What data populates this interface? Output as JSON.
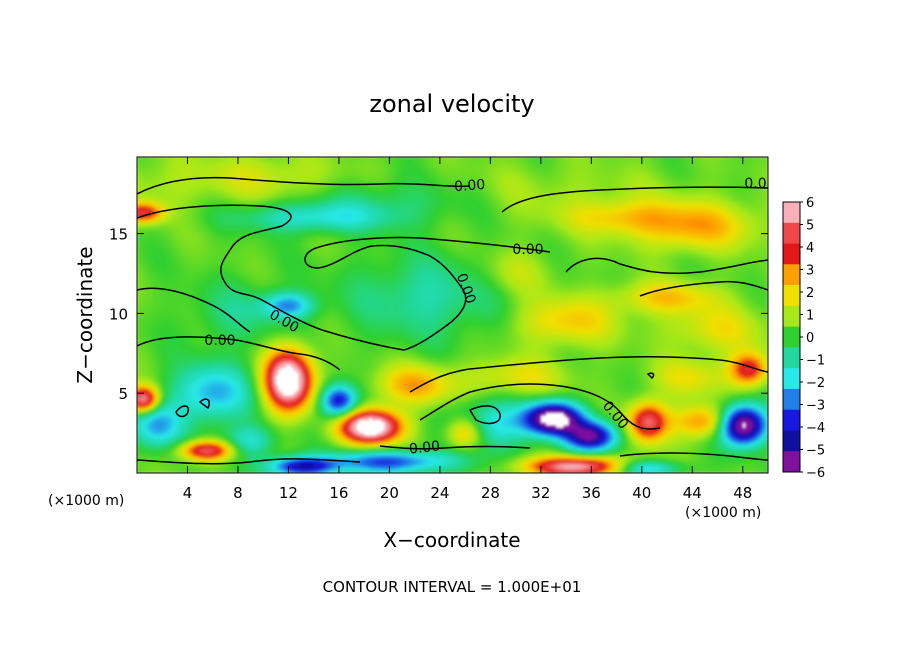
{
  "chart_data": {
    "type": "heatmap",
    "title": "zonal velocity",
    "xlabel": "X−coordinate",
    "ylabel": "Z−coordinate",
    "x_unit_left": "(×1000 m)",
    "x_unit_right": "(×1000 m)",
    "xlim": [
      0,
      50
    ],
    "ylim": [
      0,
      19.8
    ],
    "x_ticks": [
      4,
      8,
      12,
      16,
      20,
      24,
      28,
      32,
      36,
      40,
      44,
      48
    ],
    "y_ticks": [
      5,
      10,
      15
    ],
    "colorbar": {
      "range": [
        -6,
        6
      ],
      "tick_labels": [
        "6",
        "5",
        "4",
        "3",
        "2",
        "1",
        "0",
        "−1",
        "−2",
        "−3",
        "−4",
        "−5",
        "−6"
      ],
      "colors": [
        "#f7b0b8",
        "#f04848",
        "#e01818",
        "#ffa000",
        "#f0e000",
        "#a8e818",
        "#30d030",
        "#20d8a0",
        "#28e8e8",
        "#2080e8",
        "#1818e0",
        "#1010a0",
        "#8010a0"
      ]
    },
    "contour_labels": [
      "0.00",
      "0.00",
      "0.00",
      "0.00",
      "0.00",
      "0.00",
      "0.00",
      "0.00"
    ],
    "features": [
      {
        "x": 1,
        "z": 18,
        "v": 0.6,
        "sx": 4,
        "sz": 2
      },
      {
        "x": 0.5,
        "z": 16.3,
        "v": 4,
        "sx": 1.5,
        "sz": 0.6
      },
      {
        "x": 10,
        "z": 18.5,
        "v": 1.2,
        "sx": 6,
        "sz": 1.5
      },
      {
        "x": 14,
        "z": 16,
        "v": -2,
        "sx": 6,
        "sz": 0.9
      },
      {
        "x": 20,
        "z": 17,
        "v": -1,
        "sx": 7,
        "sz": 1.5
      },
      {
        "x": 33,
        "z": 17.5,
        "v": 0.6,
        "sx": 10,
        "sz": 2
      },
      {
        "x": 44,
        "z": 15.5,
        "v": 2.5,
        "sx": 5,
        "sz": 1.5
      },
      {
        "x": 38,
        "z": 16,
        "v": 1.5,
        "sx": 4,
        "sz": 1
      },
      {
        "x": 23,
        "z": 11,
        "v": -1.5,
        "sx": 6,
        "sz": 2.5
      },
      {
        "x": 12,
        "z": 10.5,
        "v": -3,
        "sx": 2,
        "sz": 0.8
      },
      {
        "x": 8,
        "z": 10,
        "v": -1,
        "sx": 4,
        "sz": 2
      },
      {
        "x": 34,
        "z": 9.5,
        "v": 2,
        "sx": 4,
        "sz": 1.5
      },
      {
        "x": 42,
        "z": 11,
        "v": 2,
        "sx": 4,
        "sz": 1
      },
      {
        "x": 46,
        "z": 9,
        "v": 1.5,
        "sx": 4,
        "sz": 1.5
      },
      {
        "x": 30,
        "z": 12.5,
        "v": 1,
        "sx": 3,
        "sz": 1.5
      },
      {
        "x": 48.5,
        "z": 6.5,
        "v": 4,
        "sx": 1.5,
        "sz": 1
      },
      {
        "x": 12,
        "z": 5.8,
        "v": 8,
        "sx": 1.8,
        "sz": 1.8
      },
      {
        "x": 18.5,
        "z": 2.9,
        "v": 8,
        "sx": 2.3,
        "sz": 1
      },
      {
        "x": 5.5,
        "z": 1.4,
        "v": 5,
        "sx": 2,
        "sz": 0.6
      },
      {
        "x": 0.5,
        "z": 4.6,
        "v": 6,
        "sx": 1.2,
        "sz": 0.8
      },
      {
        "x": 40.5,
        "z": 3.2,
        "v": 5,
        "sx": 1.5,
        "sz": 1.2
      },
      {
        "x": 35,
        "z": 0.4,
        "v": 6,
        "sx": 4,
        "sz": 0.6
      },
      {
        "x": 26,
        "z": 2.5,
        "v": 3,
        "sx": 1.5,
        "sz": 1
      },
      {
        "x": 45,
        "z": 3.2,
        "v": 3,
        "sx": 2.5,
        "sz": 1
      },
      {
        "x": 16,
        "z": 4.5,
        "v": -5,
        "sx": 1.4,
        "sz": 1
      },
      {
        "x": 6,
        "z": 5,
        "v": -3,
        "sx": 3,
        "sz": 1.8
      },
      {
        "x": 1.5,
        "z": 3,
        "v": -3,
        "sx": 2,
        "sz": 1.5
      },
      {
        "x": 33,
        "z": 3.4,
        "v": -8,
        "sx": 2.2,
        "sz": 1
      },
      {
        "x": 48,
        "z": 3,
        "v": -8,
        "sx": 1.8,
        "sz": 1.2
      },
      {
        "x": 36,
        "z": 2.3,
        "v": -6,
        "sx": 2,
        "sz": 0.9
      },
      {
        "x": 20,
        "z": 0.7,
        "v": -4,
        "sx": 5,
        "sz": 0.7
      },
      {
        "x": 13,
        "z": 0.4,
        "v": -5,
        "sx": 2.5,
        "sz": 0.6
      },
      {
        "x": 40,
        "z": 0.3,
        "v": -3,
        "sx": 3,
        "sz": 0.5
      },
      {
        "x": 28,
        "z": 3,
        "v": -2.5,
        "sx": 3,
        "sz": 1.5
      },
      {
        "x": 9,
        "z": 2,
        "v": -2,
        "sx": 2,
        "sz": 1
      },
      {
        "x": 22,
        "z": 5.5,
        "v": 2.5,
        "sx": 3,
        "sz": 1.2
      },
      {
        "x": 30,
        "z": 6,
        "v": 1.5,
        "sx": 4,
        "sz": 1.2
      },
      {
        "x": 44,
        "z": 6,
        "v": 1.5,
        "sx": 3,
        "sz": 1.2
      }
    ]
  },
  "footer": {
    "contour_interval": "CONTOUR INTERVAL = 1.000E+01"
  }
}
